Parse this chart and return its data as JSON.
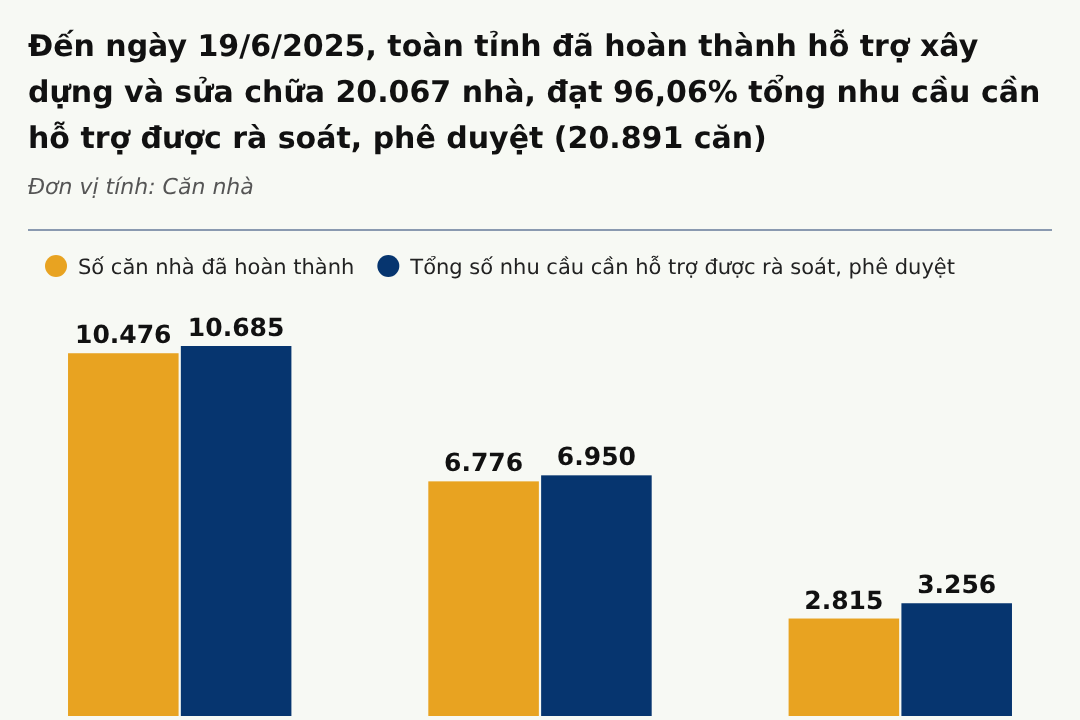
{
  "chart_data": {
    "type": "bar",
    "title": "Đến ngày 19/6/2025, toàn tỉnh đã hoàn thành hỗ trợ xây dựng và sửa chữa 20.067 nhà, đạt 96,06% tổng nhu cầu cần hỗ trợ được rà soát, phê duyệt (20.891 căn)",
    "subtitle": "Đơn vị tính: Căn nhà",
    "categories": [
      null,
      null,
      null
    ],
    "legend": "top left",
    "series": [
      {
        "name": "Số căn nhà đã hoàn thành",
        "color": "#e8a321",
        "values": [
          10476,
          6776,
          2815
        ],
        "value_labels": [
          "10.476",
          "6.776",
          "2.815"
        ]
      },
      {
        "name": "Tổng số nhu cầu cần hỗ trợ được rà soát, phê duyệt",
        "color": "#06356f",
        "values": [
          10685,
          6950,
          3256
        ],
        "value_labels": [
          "10.685",
          "6.950",
          "3.256"
        ]
      }
    ]
  }
}
